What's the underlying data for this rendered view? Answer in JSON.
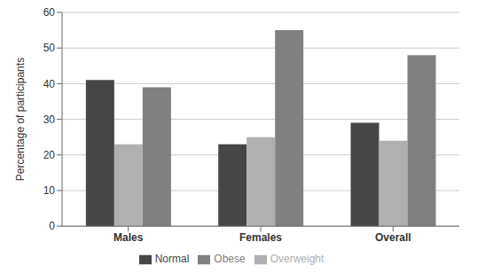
{
  "chart_data": {
    "type": "bar",
    "categories": [
      "Males",
      "Females",
      "Overall"
    ],
    "series": [
      {
        "name": "Normal",
        "color": "#464646",
        "values": [
          41,
          23,
          29
        ]
      },
      {
        "name": "Overweight",
        "color": "#b0b0b0",
        "values": [
          23,
          25,
          24
        ]
      },
      {
        "name": "Obese",
        "color": "#808080",
        "values": [
          39,
          55,
          48
        ]
      }
    ],
    "y_label": "Percentage of participants",
    "ylim": [
      0,
      60
    ],
    "yticks": [
      0,
      10,
      20,
      30,
      40,
      50,
      60
    ],
    "grid": true,
    "legend": "bottom"
  }
}
